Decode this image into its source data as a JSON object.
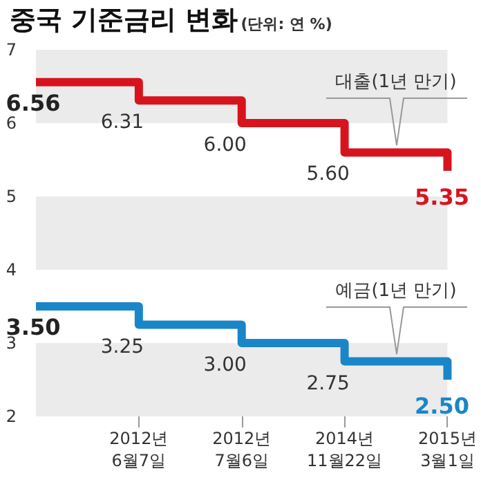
{
  "chart_data": {
    "type": "step",
    "title": "중국 기준금리 변화",
    "subtitle": "(단위: 연 %)",
    "categories": [
      null,
      "2012년\n6월7일",
      "2012년\n7월6일",
      "2014년\n11월22일",
      "2015년\n3월1일"
    ],
    "series": [
      {
        "name": "대출(1년 만기)",
        "color": "#d7141e",
        "values": [
          6.56,
          6.31,
          6.0,
          5.6,
          5.35
        ],
        "value_labels": [
          "6.56",
          "6.31",
          "6.00",
          "5.60",
          "5.35"
        ]
      },
      {
        "name": "예금(1년 만기)",
        "color": "#1a86c8",
        "values": [
          3.5,
          3.25,
          3.0,
          2.75,
          2.5
        ],
        "value_labels": [
          "3.50",
          "3.25",
          "3.00",
          "2.75",
          "2.50"
        ]
      }
    ],
    "ylim": [
      2,
      7
    ],
    "yticks": [
      2,
      3,
      4,
      5,
      6,
      7
    ],
    "legend": false,
    "marker": "none",
    "line_style": "solid"
  }
}
